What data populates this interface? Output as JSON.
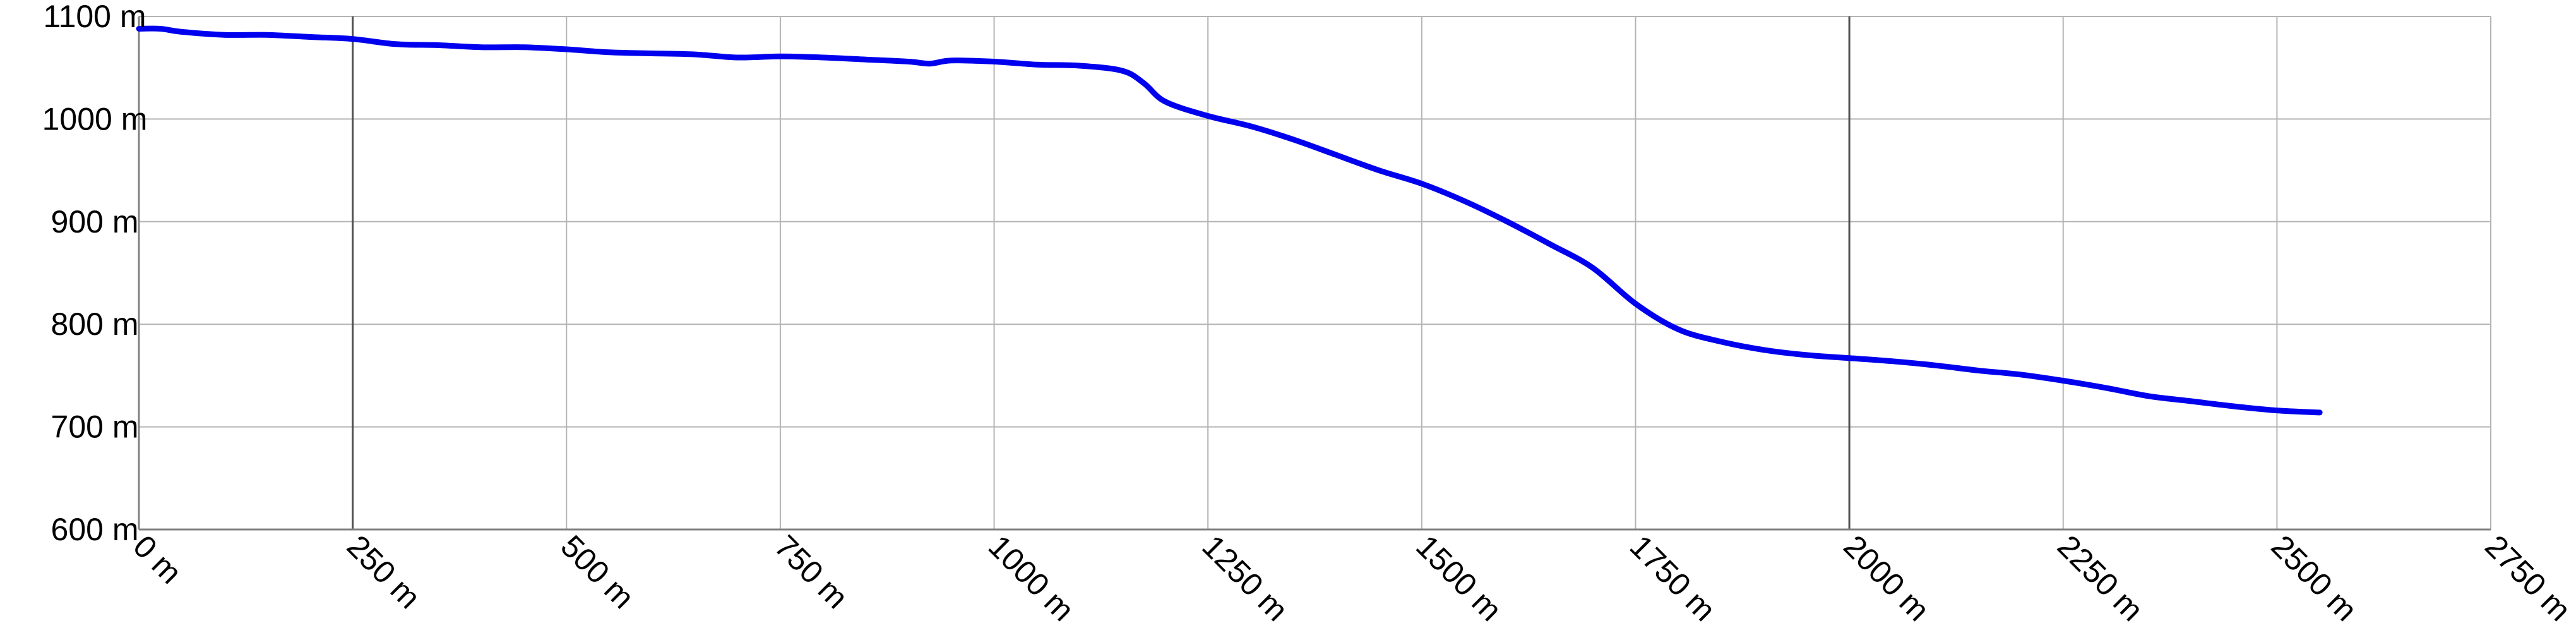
{
  "chart_data": {
    "type": "line",
    "title": "",
    "xlabel": "",
    "ylabel": "",
    "xlim": [
      0,
      2750
    ],
    "ylim": [
      600,
      1100
    ],
    "x_ticks": [
      0,
      250,
      500,
      750,
      1000,
      1250,
      1500,
      1750,
      2000,
      2250,
      2500,
      2750
    ],
    "x_tick_labels": [
      "0 m",
      "250 m",
      "500 m",
      "750 m",
      "1000 m",
      "1250 m",
      "1500 m",
      "1750 m",
      "2000 m",
      "2250 m",
      "2500 m",
      "2750 m"
    ],
    "y_ticks": [
      600,
      700,
      800,
      900,
      1000,
      1100
    ],
    "y_tick_labels": [
      "600 m",
      "700 m",
      "800 m",
      "900 m",
      "1000 m",
      "1100 m"
    ],
    "grid": true,
    "legend": "none",
    "series": [
      {
        "color": "#0000ee",
        "x": [
          0,
          25,
          50,
          100,
          150,
          200,
          250,
          300,
          350,
          400,
          450,
          500,
          550,
          600,
          650,
          700,
          750,
          800,
          850,
          900,
          925,
          950,
          1000,
          1050,
          1100,
          1150,
          1175,
          1200,
          1250,
          1300,
          1350,
          1400,
          1450,
          1500,
          1550,
          1600,
          1650,
          1700,
          1750,
          1800,
          1850,
          1900,
          1950,
          2000,
          2050,
          2100,
          2150,
          2200,
          2250,
          2300,
          2350,
          2400,
          2450,
          2500,
          2550
        ],
        "values": [
          1088,
          1088,
          1085,
          1082,
          1082,
          1080,
          1078,
          1073,
          1072,
          1070,
          1070,
          1068,
          1065,
          1064,
          1063,
          1060,
          1061,
          1060,
          1058,
          1056,
          1054,
          1057,
          1056,
          1053,
          1052,
          1047,
          1035,
          1017,
          1003,
          993,
          980,
          965,
          950,
          937,
          920,
          900,
          878,
          855,
          820,
          795,
          783,
          775,
          770,
          767,
          764,
          760,
          755,
          751,
          745,
          738,
          730,
          725,
          720,
          716,
          714
        ]
      }
    ]
  }
}
